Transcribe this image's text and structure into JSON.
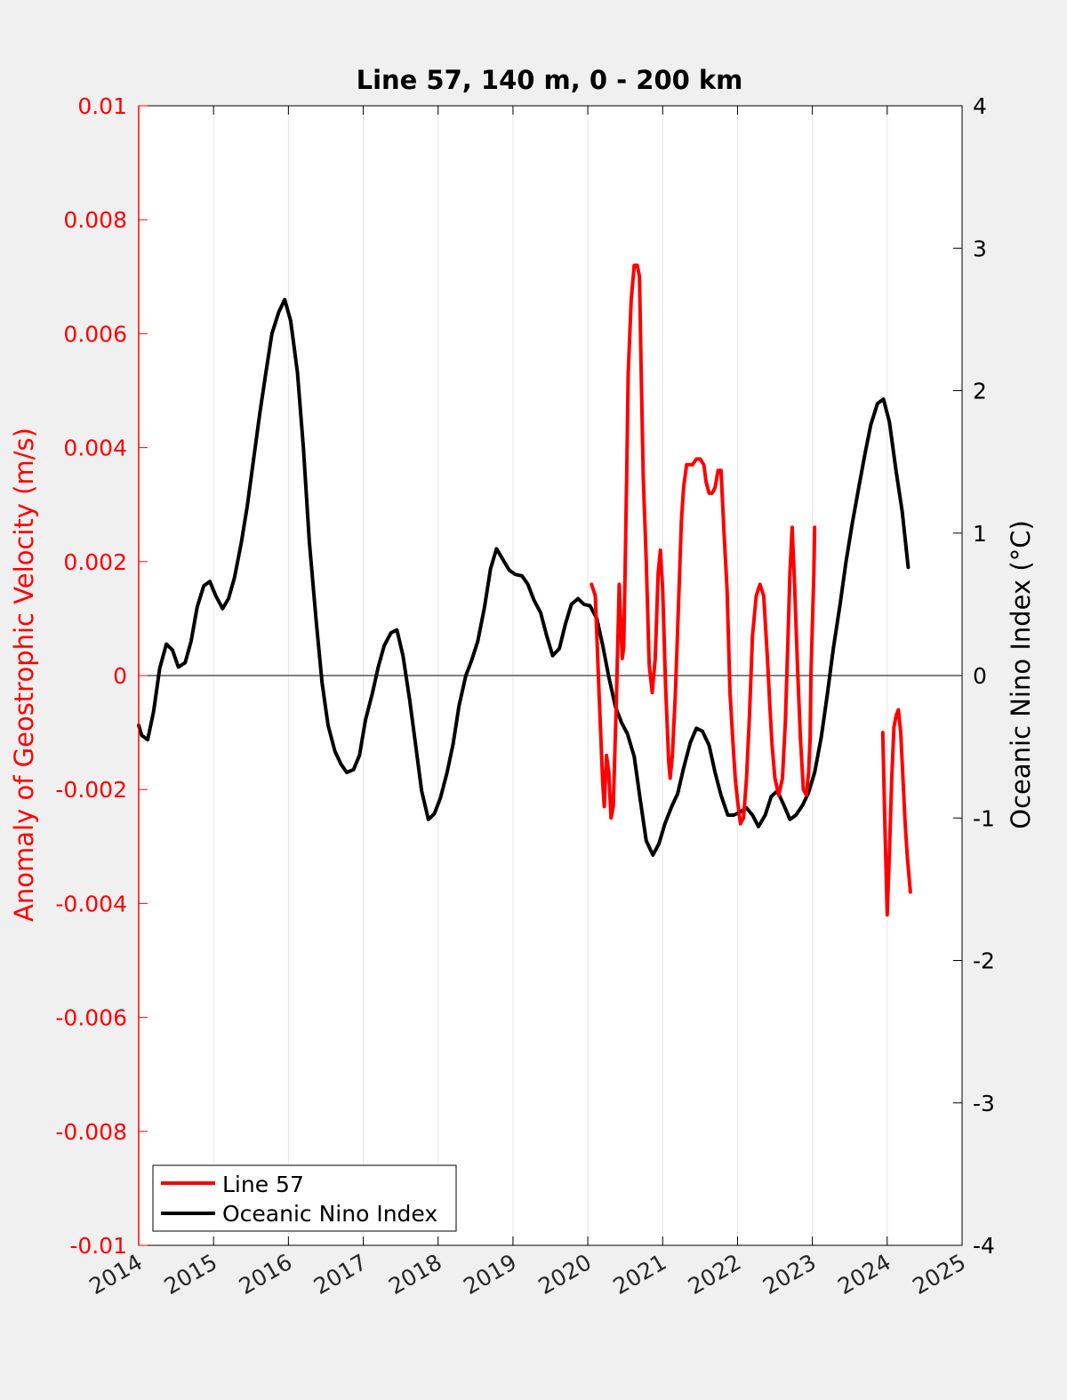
{
  "chart_data": {
    "type": "line",
    "title": "Line 57, 140 m, 0 - 200 km",
    "xlabel": "",
    "ylabel": "Anomaly of Geostrophic Velocity (m/s)",
    "y2label": "Oceanic Nino Index (°C)",
    "xlim": [
      2014,
      2025
    ],
    "ylim": [
      -0.01,
      0.01
    ],
    "y2lim": [
      -4,
      4
    ],
    "grid": "vertical",
    "legend_position": "bottom-left",
    "x_ticks": [
      "2014",
      "2015",
      "2016",
      "2017",
      "2018",
      "2019",
      "2020",
      "2021",
      "2022",
      "2023",
      "2024",
      "2025"
    ],
    "y_ticks": [
      "0.01",
      "0.008",
      "0.006",
      "0.004",
      "0.002",
      "0",
      "-0.002",
      "-0.004",
      "-0.006",
      "-0.008",
      "-0.01"
    ],
    "y2_ticks": [
      "4",
      "3",
      "2",
      "1",
      "0",
      "-1",
      "-2",
      "-3",
      "-4"
    ],
    "colors": {
      "line57": "#ff0000",
      "oni": "#000000",
      "left_axis": "#ff0000",
      "right_axis": "#000000"
    },
    "series": [
      {
        "name": "Line 57",
        "axis": "left",
        "segments": [
          {
            "x": [
              2020.05,
              2020.1,
              2020.15,
              2020.2,
              2020.22,
              2020.25,
              2020.28,
              2020.31,
              2020.34,
              2020.38,
              2020.42,
              2020.46,
              2020.48,
              2020.5,
              2020.52,
              2020.54,
              2020.58,
              2020.62,
              2020.66,
              2020.69,
              2020.71,
              2020.74,
              2020.78,
              2020.82,
              2020.86,
              2020.9,
              2020.94,
              2020.97,
              2021.0,
              2021.04,
              2021.08,
              2021.1,
              2021.13,
              2021.17,
              2021.21,
              2021.25,
              2021.28,
              2021.32,
              2021.36,
              2021.4,
              2021.45,
              2021.5,
              2021.55,
              2021.58,
              2021.62,
              2021.66,
              2021.7,
              2021.74,
              2021.78,
              2021.82,
              2021.86,
              2021.9,
              2021.94,
              2021.97,
              2022.0,
              2022.04,
              2022.08,
              2022.12,
              2022.16,
              2022.2,
              2022.25,
              2022.3,
              2022.35,
              2022.4,
              2022.43,
              2022.46,
              2022.5,
              2022.55,
              2022.6,
              2022.64,
              2022.67,
              2022.7,
              2022.73,
              2022.76,
              2022.8,
              2022.84,
              2022.88,
              2022.92,
              2022.95,
              2022.97,
              2022.98,
              2023.02,
              2023.03
            ],
            "y": [
              0.0016,
              0.0014,
              -0.0003,
              -0.0019,
              -0.0023,
              -0.0014,
              -0.0017,
              -0.0025,
              -0.0023,
              -0.0005,
              0.0016,
              0.0003,
              0.0005,
              0.002,
              0.0036,
              0.0053,
              0.0066,
              0.0072,
              0.0072,
              0.007,
              0.0055,
              0.0035,
              0.002,
              0.0002,
              -0.0003,
              0.0003,
              0.0018,
              0.0022,
              0.0015,
              -0.0002,
              -0.0015,
              -0.0018,
              -0.0014,
              -0.0003,
              0.0012,
              0.0027,
              0.0033,
              0.0037,
              0.0037,
              0.0037,
              0.0038,
              0.0038,
              0.0037,
              0.0034,
              0.0032,
              0.0032,
              0.0033,
              0.0036,
              0.0036,
              0.0025,
              0.0015,
              -0.0003,
              -0.0012,
              -0.0018,
              -0.0022,
              -0.0026,
              -0.0025,
              -0.0018,
              -0.0007,
              0.0007,
              0.0014,
              0.0016,
              0.0014,
              0.0003,
              -0.0005,
              -0.0012,
              -0.0018,
              -0.0021,
              -0.0018,
              -0.0008,
              0.0005,
              0.0018,
              0.0026,
              0.0017,
              0.0002,
              -0.0011,
              -0.002,
              -0.0021,
              -0.0017,
              -0.0011,
              0.0,
              0.0018,
              0.0026
            ]
          },
          {
            "x": [
              2023.94,
              2023.97,
              2024.0,
              2024.03,
              2024.06,
              2024.09,
              2024.12,
              2024.15,
              2024.18,
              2024.21,
              2024.24,
              2024.27,
              2024.31
            ],
            "y": [
              -0.001,
              -0.0027,
              -0.0042,
              -0.0031,
              -0.0018,
              -0.0009,
              -0.0007,
              -0.0006,
              -0.001,
              -0.0018,
              -0.0026,
              -0.0032,
              -0.0038
            ]
          }
        ]
      },
      {
        "name": "Oceanic Nino Index",
        "axis": "right",
        "x": [
          2014.0,
          2014.04,
          2014.12,
          2014.2,
          2014.28,
          2014.37,
          2014.45,
          2014.53,
          2014.62,
          2014.7,
          2014.78,
          2014.87,
          2014.95,
          2015.03,
          2015.12,
          2015.2,
          2015.28,
          2015.37,
          2015.45,
          2015.53,
          2015.62,
          2015.7,
          2015.78,
          2015.87,
          2015.95,
          2016.03,
          2016.12,
          2016.2,
          2016.28,
          2016.37,
          2016.45,
          2016.53,
          2016.62,
          2016.7,
          2016.78,
          2016.87,
          2016.95,
          2017.03,
          2017.12,
          2017.2,
          2017.28,
          2017.37,
          2017.45,
          2017.53,
          2017.62,
          2017.7,
          2017.78,
          2017.87,
          2017.95,
          2018.03,
          2018.12,
          2018.2,
          2018.28,
          2018.37,
          2018.45,
          2018.53,
          2018.62,
          2018.7,
          2018.78,
          2018.87,
          2018.95,
          2019.03,
          2019.12,
          2019.2,
          2019.28,
          2019.37,
          2019.45,
          2019.53,
          2019.62,
          2019.7,
          2019.78,
          2019.87,
          2019.95,
          2020.03,
          2020.12,
          2020.2,
          2020.28,
          2020.37,
          2020.45,
          2020.53,
          2020.62,
          2020.7,
          2020.78,
          2020.87,
          2020.95,
          2021.03,
          2021.12,
          2021.2,
          2021.28,
          2021.37,
          2021.45,
          2021.53,
          2021.62,
          2021.7,
          2021.78,
          2021.87,
          2021.95,
          2022.03,
          2022.12,
          2022.2,
          2022.28,
          2022.37,
          2022.45,
          2022.53,
          2022.62,
          2022.7,
          2022.78,
          2022.87,
          2022.95,
          2023.03,
          2023.12,
          2023.2,
          2023.28,
          2023.37,
          2023.45,
          2023.53,
          2023.62,
          2023.7,
          2023.78,
          2023.87,
          2023.95,
          2024.03,
          2024.12,
          2024.2,
          2024.28
        ],
        "y": [
          -0.35,
          -0.42,
          -0.45,
          -0.25,
          0.05,
          0.22,
          0.18,
          0.06,
          0.09,
          0.24,
          0.48,
          0.63,
          0.66,
          0.56,
          0.47,
          0.54,
          0.69,
          0.93,
          1.19,
          1.5,
          1.85,
          2.13,
          2.4,
          2.55,
          2.64,
          2.49,
          2.13,
          1.6,
          0.94,
          0.39,
          -0.05,
          -0.35,
          -0.53,
          -0.62,
          -0.68,
          -0.66,
          -0.56,
          -0.31,
          -0.13,
          0.06,
          0.21,
          0.3,
          0.32,
          0.14,
          -0.17,
          -0.49,
          -0.81,
          -1.01,
          -0.97,
          -0.86,
          -0.68,
          -0.48,
          -0.21,
          0.0,
          0.11,
          0.24,
          0.48,
          0.75,
          0.89,
          0.81,
          0.74,
          0.71,
          0.7,
          0.64,
          0.53,
          0.44,
          0.28,
          0.14,
          0.19,
          0.36,
          0.5,
          0.54,
          0.5,
          0.49,
          0.4,
          0.21,
          -0.01,
          -0.22,
          -0.33,
          -0.41,
          -0.57,
          -0.87,
          -1.16,
          -1.26,
          -1.18,
          -1.04,
          -0.92,
          -0.83,
          -0.65,
          -0.47,
          -0.37,
          -0.39,
          -0.49,
          -0.68,
          -0.84,
          -0.98,
          -0.98,
          -0.96,
          -0.93,
          -0.98,
          -1.06,
          -0.98,
          -0.85,
          -0.81,
          -0.91,
          -1.01,
          -0.98,
          -0.91,
          -0.82,
          -0.68,
          -0.43,
          -0.13,
          0.19,
          0.5,
          0.8,
          1.06,
          1.32,
          1.55,
          1.76,
          1.91,
          1.94,
          1.78,
          1.43,
          1.15,
          0.76
        ]
      }
    ]
  }
}
